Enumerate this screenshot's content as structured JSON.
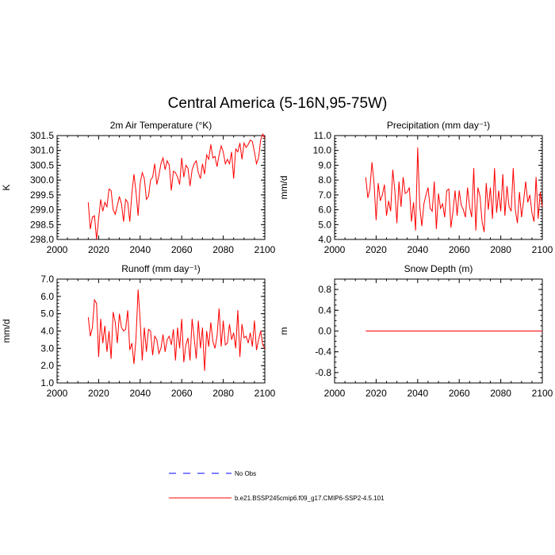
{
  "figure": {
    "title": "Central America (5-16N,95-75W)"
  },
  "legend": {
    "items": [
      {
        "label": "No Obs",
        "color": "#0000ff",
        "style": "dashed"
      },
      {
        "label": "b.e21.BSSP245cmip6.f09_g17.CMIP6-SSP2-4.5.101",
        "color": "#ff0000",
        "style": "solid"
      }
    ]
  },
  "chart_data": [
    {
      "type": "line",
      "title": "2m Air Temperature (°K)",
      "xlabel": "",
      "ylabel": "K",
      "xlim": [
        2000,
        2100
      ],
      "ylim": [
        298.0,
        301.5
      ],
      "xticks": [
        2000,
        2020,
        2040,
        2060,
        2080,
        2100
      ],
      "yticks": [
        "298.0",
        "298.5",
        "299.0",
        "299.5",
        "300.0",
        "300.5",
        "301.0",
        "301.5"
      ],
      "yticks_minor_step": 0.1,
      "series": [
        {
          "name": "b.e21.BSSP245cmip6.f09_g17.CMIP6-SSP2-4.5.101",
          "color": "#ff0000",
          "x": [
            2015,
            2016,
            2017,
            2018,
            2019,
            2020,
            2021,
            2022,
            2023,
            2024,
            2025,
            2026,
            2027,
            2028,
            2029,
            2030,
            2031,
            2032,
            2033,
            2034,
            2035,
            2036,
            2037,
            2038,
            2039,
            2040,
            2041,
            2042,
            2043,
            2044,
            2045,
            2046,
            2047,
            2048,
            2049,
            2050,
            2051,
            2052,
            2053,
            2054,
            2055,
            2056,
            2057,
            2058,
            2059,
            2060,
            2061,
            2062,
            2063,
            2064,
            2065,
            2066,
            2067,
            2068,
            2069,
            2070,
            2071,
            2072,
            2073,
            2074,
            2075,
            2076,
            2077,
            2078,
            2079,
            2080,
            2081,
            2082,
            2083,
            2084,
            2085,
            2086,
            2087,
            2088,
            2089,
            2090,
            2091,
            2092,
            2093,
            2094,
            2095,
            2096,
            2097,
            2098,
            2099,
            2100
          ],
          "values": [
            299.25,
            298.35,
            298.75,
            298.8,
            298.0,
            298.7,
            299.35,
            298.95,
            299.25,
            299.1,
            299.7,
            299.65,
            299.0,
            298.85,
            299.15,
            299.45,
            299.2,
            298.6,
            299.35,
            299.25,
            298.6,
            299.55,
            300.2,
            299.6,
            298.8,
            299.9,
            300.25,
            300.05,
            299.35,
            299.45,
            300.0,
            300.1,
            300.55,
            299.85,
            300.15,
            300.55,
            300.75,
            300.35,
            300.65,
            300.5,
            299.65,
            300.3,
            300.25,
            300.1,
            299.85,
            300.75,
            300.1,
            300.5,
            300.4,
            299.8,
            300.35,
            300.55,
            300.65,
            300.25,
            300.05,
            300.55,
            300.2,
            300.85,
            300.7,
            301.2,
            300.75,
            300.8,
            300.45,
            300.85,
            301.15,
            300.95,
            300.55,
            300.7,
            300.55,
            300.95,
            300.05,
            301.05,
            300.95,
            301.25,
            300.7,
            301.25,
            301.1,
            301.2,
            301.35,
            301.3,
            300.95,
            300.55,
            300.75,
            301.35,
            301.55,
            301.4
          ],
          "style": "solid"
        }
      ]
    },
    {
      "type": "line",
      "title": "Precipitation (mm day⁻¹)",
      "xlabel": "",
      "ylabel": "mm/d",
      "xlim": [
        2000,
        2100
      ],
      "ylim": [
        4.0,
        11.0
      ],
      "xticks": [
        2000,
        2020,
        2040,
        2060,
        2080,
        2100
      ],
      "yticks": [
        "4.0",
        "5.0",
        "6.0",
        "7.0",
        "8.0",
        "9.0",
        "10.0",
        "11.0"
      ],
      "yticks_minor_step": 0.2,
      "series": [
        {
          "name": "b.e21.BSSP245cmip6.f09_g17.CMIP6-SSP2-4.5.101",
          "color": "#ff0000",
          "x": [
            2015,
            2016,
            2017,
            2018,
            2019,
            2020,
            2021,
            2022,
            2023,
            2024,
            2025,
            2026,
            2027,
            2028,
            2029,
            2030,
            2031,
            2032,
            2033,
            2034,
            2035,
            2036,
            2037,
            2038,
            2039,
            2040,
            2041,
            2042,
            2043,
            2044,
            2045,
            2046,
            2047,
            2048,
            2049,
            2050,
            2051,
            2052,
            2053,
            2054,
            2055,
            2056,
            2057,
            2058,
            2059,
            2060,
            2061,
            2062,
            2063,
            2064,
            2065,
            2066,
            2067,
            2068,
            2069,
            2070,
            2071,
            2072,
            2073,
            2074,
            2075,
            2076,
            2077,
            2078,
            2079,
            2080,
            2081,
            2082,
            2083,
            2084,
            2085,
            2086,
            2087,
            2088,
            2089,
            2090,
            2091,
            2092,
            2093,
            2094,
            2095,
            2096,
            2097,
            2098,
            2099,
            2100
          ],
          "values": [
            8.2,
            6.8,
            7.4,
            9.2,
            7.8,
            5.3,
            7.8,
            6.6,
            7.0,
            7.7,
            5.6,
            6.6,
            5.9,
            8.7,
            7.3,
            5.1,
            7.9,
            6.2,
            8.2,
            7.1,
            7.2,
            7.5,
            5.2,
            6.5,
            4.6,
            10.2,
            6.2,
            4.9,
            6.4,
            7.0,
            7.5,
            6.1,
            5.9,
            7.9,
            4.7,
            7.1,
            6.1,
            6.4,
            5.5,
            7.3,
            7.4,
            4.8,
            5.9,
            7.3,
            5.6,
            7.3,
            6.3,
            6.0,
            5.5,
            7.5,
            6.2,
            5.5,
            8.8,
            4.6,
            7.5,
            6.9,
            5.2,
            4.5,
            7.8,
            6.0,
            7.5,
            5.4,
            8.8,
            5.8,
            7.3,
            5.9,
            8.4,
            5.6,
            7.6,
            6.2,
            5.9,
            8.8,
            6.0,
            5.1,
            7.2,
            5.5,
            6.6,
            7.9,
            6.5,
            7.0,
            5.8,
            5.2,
            8.2,
            5.4,
            7.2,
            6.2
          ],
          "style": "solid"
        }
      ]
    },
    {
      "type": "line",
      "title": "Runoff (mm day⁻¹)",
      "xlabel": "",
      "ylabel": "mm/d",
      "xlim": [
        2000,
        2100
      ],
      "ylim": [
        1.0,
        7.0
      ],
      "xticks": [
        2000,
        2020,
        2040,
        2060,
        2080,
        2100
      ],
      "yticks": [
        "1.0",
        "2.0",
        "3.0",
        "4.0",
        "5.0",
        "6.0",
        "7.0"
      ],
      "yticks_minor_step": 0.2,
      "series": [
        {
          "name": "b.e21.BSSP245cmip6.f09_g17.CMIP6-SSP2-4.5.101",
          "color": "#ff0000",
          "x": [
            2015,
            2016,
            2017,
            2018,
            2019,
            2020,
            2021,
            2022,
            2023,
            2024,
            2025,
            2026,
            2027,
            2028,
            2029,
            2030,
            2031,
            2032,
            2033,
            2034,
            2035,
            2036,
            2037,
            2038,
            2039,
            2040,
            2041,
            2042,
            2043,
            2044,
            2045,
            2046,
            2047,
            2048,
            2049,
            2050,
            2051,
            2052,
            2053,
            2054,
            2055,
            2056,
            2057,
            2058,
            2059,
            2060,
            2061,
            2062,
            2063,
            2064,
            2065,
            2066,
            2067,
            2068,
            2069,
            2070,
            2071,
            2072,
            2073,
            2074,
            2075,
            2076,
            2077,
            2078,
            2079,
            2080,
            2081,
            2082,
            2083,
            2084,
            2085,
            2086,
            2087,
            2088,
            2089,
            2090,
            2091,
            2092,
            2093,
            2094,
            2095,
            2096,
            2097,
            2098,
            2099,
            2100
          ],
          "values": [
            4.8,
            3.7,
            4.2,
            5.8,
            5.6,
            2.5,
            4.7,
            3.3,
            4.3,
            2.8,
            4.0,
            2.4,
            5.1,
            4.5,
            3.3,
            5.0,
            4.2,
            4.0,
            4.1,
            5.2,
            2.9,
            3.3,
            2.1,
            3.6,
            6.4,
            4.6,
            2.3,
            4.2,
            2.8,
            4.1,
            4.0,
            2.6,
            3.7,
            3.5,
            2.7,
            3.0,
            3.8,
            2.8,
            3.5,
            3.7,
            3.2,
            4.1,
            2.3,
            4.2,
            3.0,
            4.7,
            2.2,
            3.2,
            3.6,
            2.3,
            4.7,
            3.6,
            2.4,
            4.6,
            3.0,
            4.2,
            1.7,
            4.0,
            3.1,
            4.5,
            3.4,
            3.0,
            3.7,
            5.3,
            3.1,
            4.6,
            3.2,
            3.3,
            4.4,
            3.5,
            3.9,
            3.0,
            5.2,
            2.5,
            4.4,
            3.6,
            3.7,
            3.3,
            3.9,
            3.1,
            4.6,
            2.9,
            3.5,
            4.0,
            3.2,
            3.0
          ],
          "style": "solid"
        }
      ]
    },
    {
      "type": "line",
      "title": "Snow Depth (m)",
      "xlabel": "",
      "ylabel": "m",
      "xlim": [
        2000,
        2100
      ],
      "ylim": [
        -1.0,
        1.0
      ],
      "xticks": [
        2000,
        2020,
        2040,
        2060,
        2080,
        2100
      ],
      "yticks": [
        "-0.8",
        "-0.4",
        "0.0",
        "0.4",
        "0.8"
      ],
      "yticks_minor_step": 0.1,
      "series": [
        {
          "name": "b.e21.BSSP245cmip6.f09_g17.CMIP6-SSP2-4.5.101",
          "color": "#ff0000",
          "x": [
            2015,
            2100
          ],
          "values": [
            0.0,
            0.0
          ],
          "style": "solid"
        }
      ]
    }
  ]
}
